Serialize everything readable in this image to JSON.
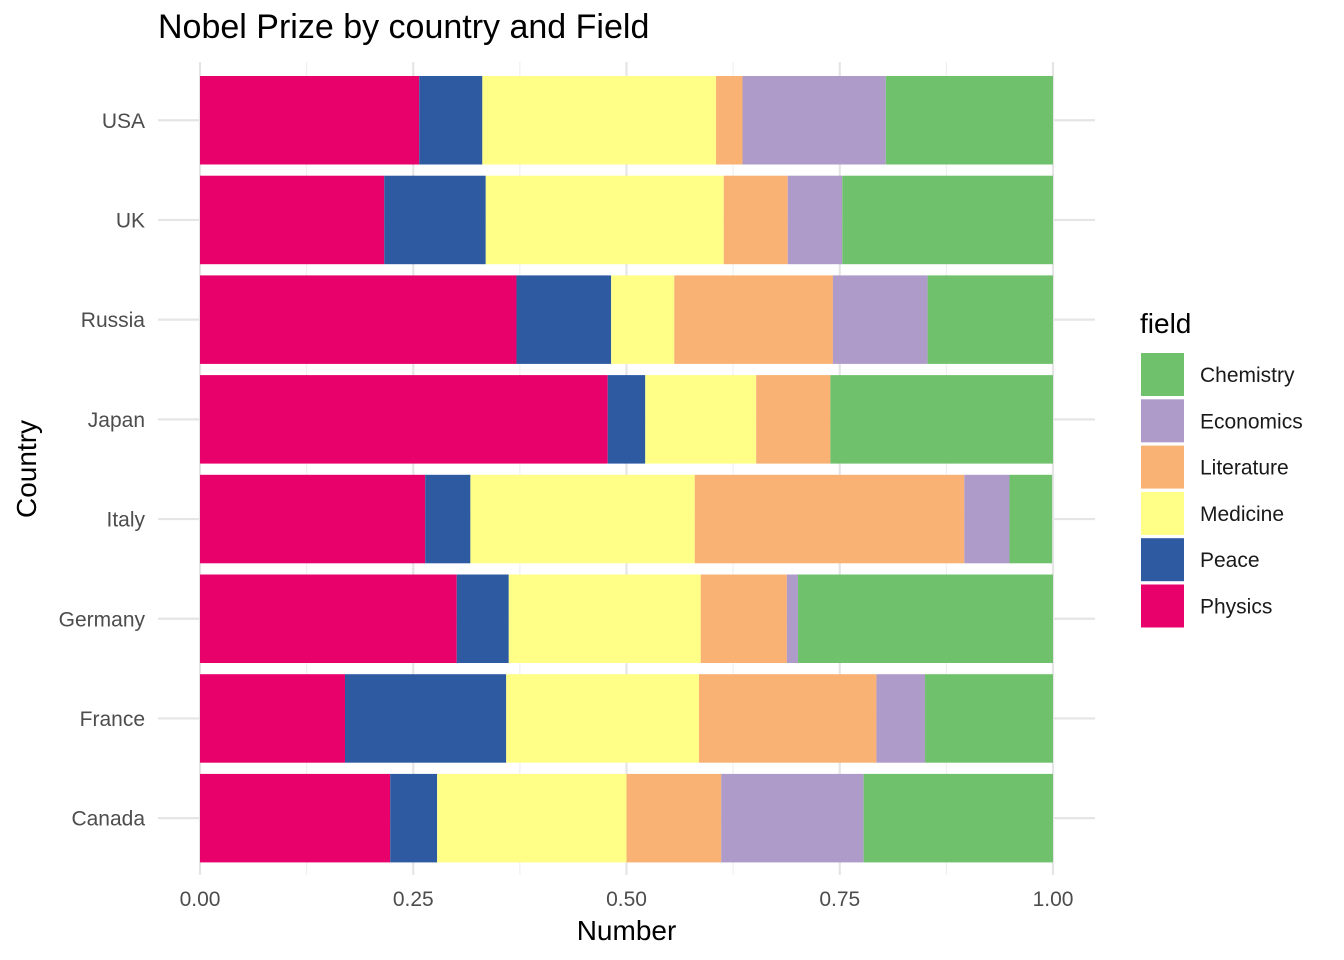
{
  "chart_data": {
    "type": "bar",
    "orientation": "horizontal",
    "stacked": true,
    "normalized": true,
    "title": "Nobel Prize by country and Field",
    "xlabel": "Number",
    "ylabel": "Country",
    "xlim": [
      0,
      1
    ],
    "x_ticks": [
      "0.00",
      "0.25",
      "0.50",
      "0.75",
      "1.00"
    ],
    "x_tick_values": [
      0,
      0.25,
      0.5,
      0.75,
      1.0
    ],
    "categories": [
      "USA",
      "UK",
      "Russia",
      "Japan",
      "Italy",
      "Germany",
      "France",
      "Canada"
    ],
    "legend": {
      "title": "field",
      "position": "right"
    },
    "stack_order": [
      "Physics",
      "Peace",
      "Medicine",
      "Literature",
      "Economics",
      "Chemistry"
    ],
    "legend_order": [
      "Chemistry",
      "Economics",
      "Literature",
      "Medicine",
      "Peace",
      "Physics"
    ],
    "colors": {
      "Chemistry": "#6fc26b",
      "Economics": "#ae9bc9",
      "Literature": "#f9b274",
      "Medicine": "#ffff88",
      "Peace": "#2d5aa1",
      "Physics": "#e8006b"
    },
    "series": [
      {
        "name": "Physics",
        "values": [
          0.257,
          0.216,
          0.371,
          0.478,
          0.264,
          0.301,
          0.17,
          0.223
        ]
      },
      {
        "name": "Peace",
        "values": [
          0.074,
          0.119,
          0.111,
          0.044,
          0.053,
          0.061,
          0.189,
          0.055
        ]
      },
      {
        "name": "Medicine",
        "values": [
          0.274,
          0.279,
          0.074,
          0.13,
          0.263,
          0.225,
          0.226,
          0.222
        ]
      },
      {
        "name": "Literature",
        "values": [
          0.031,
          0.075,
          0.186,
          0.087,
          0.316,
          0.101,
          0.208,
          0.111
        ]
      },
      {
        "name": "Economics",
        "values": [
          0.168,
          0.064,
          0.111,
          0.0,
          0.053,
          0.013,
          0.057,
          0.167
        ]
      },
      {
        "name": "Chemistry",
        "values": [
          0.196,
          0.247,
          0.147,
          0.261,
          0.05,
          0.299,
          0.15,
          0.222
        ]
      }
    ]
  }
}
